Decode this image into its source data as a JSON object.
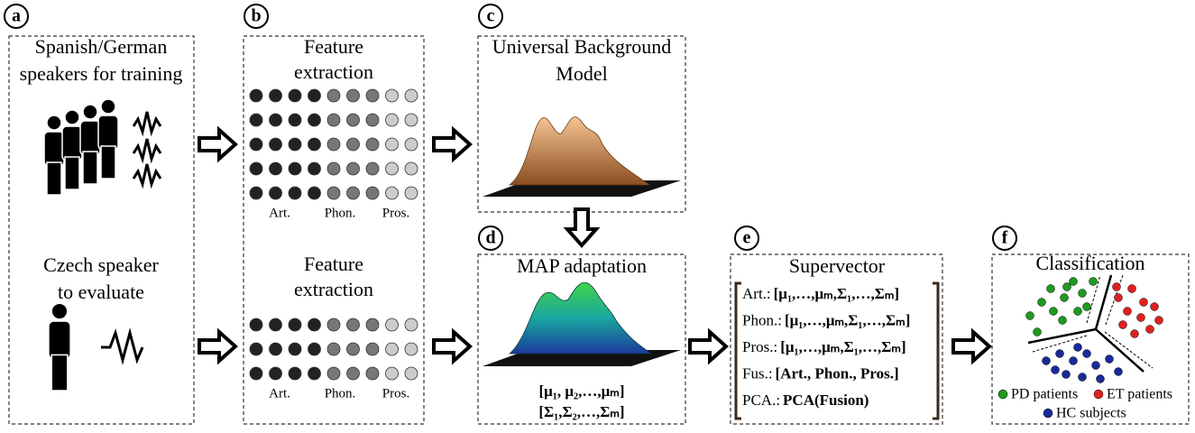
{
  "panels": {
    "a": {
      "label": "a",
      "top_text": [
        "Spanish/German",
        "speakers for training"
      ],
      "bottom_text": [
        "Czech speaker",
        "to evaluate"
      ]
    },
    "b": {
      "label": "b",
      "top_title": [
        "Feature",
        "extraction"
      ],
      "top_groups": [
        "Art.",
        "Phon.",
        "Pros."
      ],
      "bottom_title": [
        "Feature",
        "extraction"
      ],
      "bottom_groups": [
        "Art.",
        "Phon.",
        "Pros."
      ]
    },
    "c": {
      "label": "c",
      "title": [
        "Universal Background",
        "Model"
      ]
    },
    "d": {
      "label": "d",
      "title": "MAP adaptation",
      "means": "[μ₁, μ₂,…,μₘ]",
      "covariances": "[Σ₁,Σ₂,…,Σₘ]"
    },
    "e": {
      "label": "e",
      "title": "Supervector",
      "rows": [
        {
          "name": "Art.:",
          "value": "[μ₁,…,μₘ,Σ₁,…,Σₘ]"
        },
        {
          "name": "Phon.:",
          "value": "[μ₁,…,μₘ,Σ₁,…,Σₘ]"
        },
        {
          "name": "Pros.:",
          "value": "[μ₁,…,μₘ,Σ₁,…,Σₘ]"
        },
        {
          "name": "Fus.:",
          "value": "[Art., Phon., Pros.]"
        },
        {
          "name": "PCA.:",
          "value": "PCA(Fusion)"
        }
      ]
    },
    "f": {
      "label": "f",
      "title": "Classification",
      "legend": [
        {
          "name": "PD patients",
          "color": "#1e9a1e"
        },
        {
          "name": "ET patients",
          "color": "#e02020"
        },
        {
          "name": "HC subjects",
          "color": "#1a2a9a"
        }
      ]
    }
  }
}
